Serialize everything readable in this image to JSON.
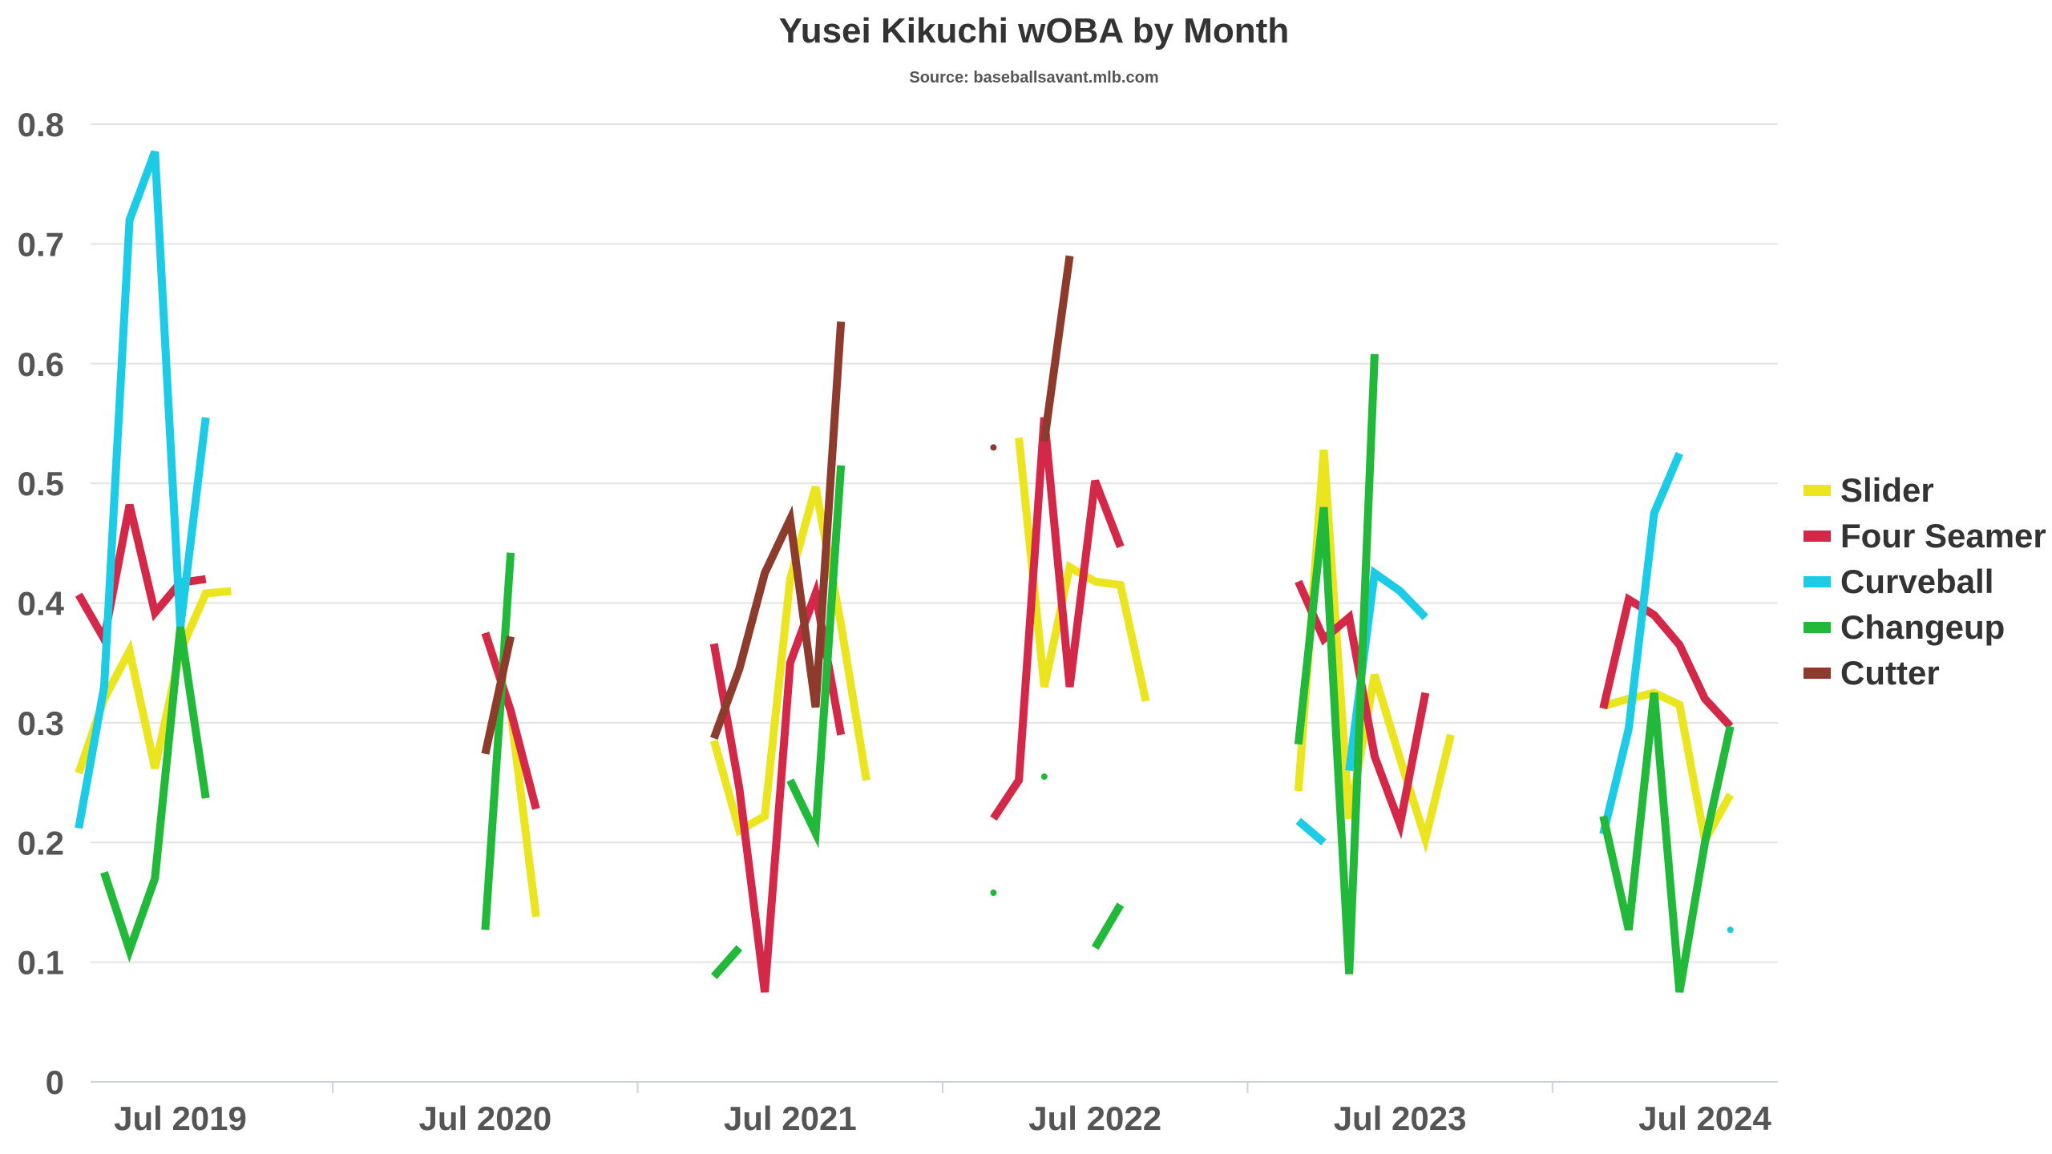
{
  "chart_data": {
    "type": "line",
    "title": "Yusei Kikuchi wOBA by Month",
    "subtitle": "Source: baseballsavant.mlb.com",
    "xlabel": "",
    "ylabel": "",
    "ylim": [
      0,
      0.8
    ],
    "y_ticks": [
      "0",
      "0.1",
      "0.2",
      "0.3",
      "0.4",
      "0.5",
      "0.6",
      "0.7",
      "0.8"
    ],
    "x_ticks": [
      "Jul 2019",
      "Jul 2020",
      "Jul 2021",
      "Jul 2022",
      "Jul 2023",
      "Jul 2024"
    ],
    "grid": true,
    "legend_position": "right",
    "series": [
      {
        "name": "Slider",
        "color": "#ebe520",
        "segments": [
          [
            [
              "2019-03",
              0.258
            ],
            [
              "2019-04",
              0.32
            ],
            [
              "2019-05",
              0.36
            ],
            [
              "2019-06",
              0.262
            ],
            [
              "2019-07",
              0.36
            ],
            [
              "2019-08",
              0.408
            ],
            [
              "2019-09",
              0.41
            ]
          ],
          [
            [
              "2020-07",
              0.375
            ],
            [
              "2020-08",
              0.31
            ],
            [
              "2020-09",
              0.138
            ]
          ],
          [
            [
              "2021-04",
              0.285
            ],
            [
              "2021-05",
              0.21
            ],
            [
              "2021-06",
              0.222
            ],
            [
              "2021-07",
              0.42
            ],
            [
              "2021-08",
              0.497
            ],
            [
              "2021-09",
              0.382
            ],
            [
              "2021-10",
              0.252
            ]
          ],
          [
            [
              "2022-04",
              0.538
            ],
            [
              "2022-05",
              0.33
            ],
            [
              "2022-06",
              0.43
            ],
            [
              "2022-07",
              0.418
            ],
            [
              "2022-08",
              0.415
            ],
            [
              "2022-09",
              0.318
            ]
          ],
          [
            [
              "2023-03",
              0.243
            ],
            [
              "2023-04",
              0.528
            ],
            [
              "2023-05",
              0.22
            ],
            [
              "2023-06",
              0.34
            ],
            [
              "2023-07",
              0.27
            ],
            [
              "2023-08",
              0.203
            ],
            [
              "2023-09",
              0.29
            ]
          ],
          [
            [
              "2024-03",
              0.314
            ],
            [
              "2024-04",
              0.32
            ],
            [
              "2024-05",
              0.325
            ],
            [
              "2024-06",
              0.315
            ],
            [
              "2024-07",
              0.202
            ],
            [
              "2024-08",
              0.24
            ]
          ]
        ]
      },
      {
        "name": "Four Seamer",
        "color": "#d42848",
        "segments": [
          [
            [
              "2019-03",
              0.407
            ],
            [
              "2019-04",
              0.37
            ],
            [
              "2019-05",
              0.482
            ],
            [
              "2019-06",
              0.392
            ],
            [
              "2019-07",
              0.417
            ],
            [
              "2019-08",
              0.42
            ]
          ],
          [
            [
              "2020-07",
              0.375
            ],
            [
              "2020-08",
              0.31
            ],
            [
              "2020-09",
              0.228
            ]
          ],
          [
            [
              "2021-04",
              0.366
            ],
            [
              "2021-05",
              0.245
            ],
            [
              "2021-06",
              0.075
            ],
            [
              "2021-07",
              0.35
            ],
            [
              "2021-08",
              0.408
            ],
            [
              "2021-09",
              0.29
            ]
          ],
          [
            [
              "2022-03",
              0.22
            ],
            [
              "2022-04",
              0.252
            ],
            [
              "2022-05",
              0.555
            ],
            [
              "2022-06",
              0.33
            ],
            [
              "2022-07",
              0.502
            ],
            [
              "2022-08",
              0.447
            ]
          ],
          [
            [
              "2023-03",
              0.418
            ],
            [
              "2023-04",
              0.37
            ],
            [
              "2023-05",
              0.388
            ],
            [
              "2023-06",
              0.272
            ],
            [
              "2023-07",
              0.215
            ],
            [
              "2023-08",
              0.325
            ]
          ],
          [
            [
              "2024-03",
              0.312
            ],
            [
              "2024-04",
              0.403
            ],
            [
              "2024-05",
              0.39
            ],
            [
              "2024-06",
              0.365
            ],
            [
              "2024-07",
              0.32
            ],
            [
              "2024-08",
              0.297
            ]
          ]
        ]
      },
      {
        "name": "Curveball",
        "color": "#1ccbe6",
        "segments": [
          [
            [
              "2019-03",
              0.212
            ],
            [
              "2019-04",
              0.33
            ],
            [
              "2019-05",
              0.72
            ],
            [
              "2019-06",
              0.777
            ],
            [
              "2019-07",
              0.38
            ],
            [
              "2019-08",
              0.555
            ]
          ],
          [
            [
              "2023-03",
              0.218
            ],
            [
              "2023-04",
              0.2
            ]
          ],
          [
            [
              "2023-05",
              0.26
            ],
            [
              "2023-06",
              0.425
            ],
            [
              "2023-07",
              0.41
            ],
            [
              "2023-08",
              0.388
            ]
          ],
          [
            [
              "2024-03",
              0.207
            ],
            [
              "2024-04",
              0.295
            ],
            [
              "2024-05",
              0.475
            ],
            [
              "2024-06",
              0.525
            ]
          ],
          [
            [
              "2024-08",
              0.127
            ]
          ]
        ]
      },
      {
        "name": "Changeup",
        "color": "#22b83a",
        "segments": [
          [
            [
              "2019-04",
              0.175
            ],
            [
              "2019-05",
              0.11
            ],
            [
              "2019-06",
              0.17
            ],
            [
              "2019-07",
              0.38
            ],
            [
              "2019-08",
              0.237
            ]
          ],
          [
            [
              "2020-07",
              0.127
            ],
            [
              "2020-08",
              0.442
            ]
          ],
          [
            [
              "2021-04",
              0.088
            ],
            [
              "2021-05",
              0.112
            ]
          ],
          [
            [
              "2021-07",
              0.252
            ],
            [
              "2021-08",
              0.208
            ],
            [
              "2021-09",
              0.515
            ]
          ],
          [
            [
              "2022-03",
              0.158
            ]
          ],
          [
            [
              "2022-05",
              0.255
            ]
          ],
          [
            [
              "2022-07",
              0.112
            ],
            [
              "2022-08",
              0.148
            ]
          ],
          [
            [
              "2023-03",
              0.282
            ],
            [
              "2023-04",
              0.48
            ],
            [
              "2023-05",
              0.09
            ],
            [
              "2023-06",
              0.608
            ]
          ],
          [
            [
              "2024-03",
              0.222
            ],
            [
              "2024-04",
              0.127
            ],
            [
              "2024-05",
              0.325
            ],
            [
              "2024-06",
              0.075
            ],
            [
              "2024-07",
              0.2
            ],
            [
              "2024-08",
              0.297
            ]
          ]
        ]
      },
      {
        "name": "Cutter",
        "color": "#8c3b2c",
        "segments": [
          [
            [
              "2020-07",
              0.274
            ],
            [
              "2020-08",
              0.372
            ]
          ],
          [
            [
              "2021-04",
              0.287
            ],
            [
              "2021-05",
              0.345
            ],
            [
              "2021-06",
              0.425
            ],
            [
              "2021-07",
              0.47
            ],
            [
              "2021-08",
              0.313
            ],
            [
              "2021-09",
              0.635
            ]
          ],
          [
            [
              "2022-03",
              0.53
            ]
          ],
          [
            [
              "2022-05",
              0.535
            ],
            [
              "2022-06",
              0.69
            ]
          ]
        ]
      }
    ]
  }
}
